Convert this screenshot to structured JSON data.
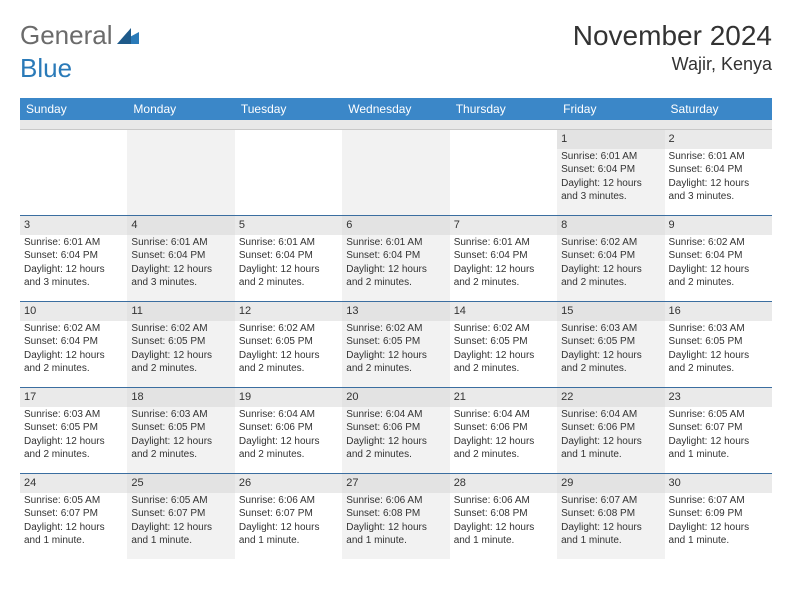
{
  "logo": {
    "text1": "General",
    "text2": "Blue"
  },
  "title": "November 2024",
  "location": "Wajir, Kenya",
  "colors": {
    "header_bg": "#3b87c8",
    "header_text": "#ffffff",
    "row_divider": "#3b6ea0",
    "alt_cell_bg": "#f2f2f2",
    "daynum_bg": "#eaeaea",
    "daynum_alt_bg": "#e3e3e3",
    "logo_gray": "#6b6b6b",
    "logo_blue": "#2a7ab8"
  },
  "day_names": [
    "Sunday",
    "Monday",
    "Tuesday",
    "Wednesday",
    "Thursday",
    "Friday",
    "Saturday"
  ],
  "weeks": [
    [
      {
        "n": "",
        "sr": "",
        "ss": "",
        "dl": ""
      },
      {
        "n": "",
        "sr": "",
        "ss": "",
        "dl": ""
      },
      {
        "n": "",
        "sr": "",
        "ss": "",
        "dl": ""
      },
      {
        "n": "",
        "sr": "",
        "ss": "",
        "dl": ""
      },
      {
        "n": "",
        "sr": "",
        "ss": "",
        "dl": ""
      },
      {
        "n": "1",
        "sr": "Sunrise: 6:01 AM",
        "ss": "Sunset: 6:04 PM",
        "dl": "Daylight: 12 hours and 3 minutes."
      },
      {
        "n": "2",
        "sr": "Sunrise: 6:01 AM",
        "ss": "Sunset: 6:04 PM",
        "dl": "Daylight: 12 hours and 3 minutes."
      }
    ],
    [
      {
        "n": "3",
        "sr": "Sunrise: 6:01 AM",
        "ss": "Sunset: 6:04 PM",
        "dl": "Daylight: 12 hours and 3 minutes."
      },
      {
        "n": "4",
        "sr": "Sunrise: 6:01 AM",
        "ss": "Sunset: 6:04 PM",
        "dl": "Daylight: 12 hours and 3 minutes."
      },
      {
        "n": "5",
        "sr": "Sunrise: 6:01 AM",
        "ss": "Sunset: 6:04 PM",
        "dl": "Daylight: 12 hours and 2 minutes."
      },
      {
        "n": "6",
        "sr": "Sunrise: 6:01 AM",
        "ss": "Sunset: 6:04 PM",
        "dl": "Daylight: 12 hours and 2 minutes."
      },
      {
        "n": "7",
        "sr": "Sunrise: 6:01 AM",
        "ss": "Sunset: 6:04 PM",
        "dl": "Daylight: 12 hours and 2 minutes."
      },
      {
        "n": "8",
        "sr": "Sunrise: 6:02 AM",
        "ss": "Sunset: 6:04 PM",
        "dl": "Daylight: 12 hours and 2 minutes."
      },
      {
        "n": "9",
        "sr": "Sunrise: 6:02 AM",
        "ss": "Sunset: 6:04 PM",
        "dl": "Daylight: 12 hours and 2 minutes."
      }
    ],
    [
      {
        "n": "10",
        "sr": "Sunrise: 6:02 AM",
        "ss": "Sunset: 6:04 PM",
        "dl": "Daylight: 12 hours and 2 minutes."
      },
      {
        "n": "11",
        "sr": "Sunrise: 6:02 AM",
        "ss": "Sunset: 6:05 PM",
        "dl": "Daylight: 12 hours and 2 minutes."
      },
      {
        "n": "12",
        "sr": "Sunrise: 6:02 AM",
        "ss": "Sunset: 6:05 PM",
        "dl": "Daylight: 12 hours and 2 minutes."
      },
      {
        "n": "13",
        "sr": "Sunrise: 6:02 AM",
        "ss": "Sunset: 6:05 PM",
        "dl": "Daylight: 12 hours and 2 minutes."
      },
      {
        "n": "14",
        "sr": "Sunrise: 6:02 AM",
        "ss": "Sunset: 6:05 PM",
        "dl": "Daylight: 12 hours and 2 minutes."
      },
      {
        "n": "15",
        "sr": "Sunrise: 6:03 AM",
        "ss": "Sunset: 6:05 PM",
        "dl": "Daylight: 12 hours and 2 minutes."
      },
      {
        "n": "16",
        "sr": "Sunrise: 6:03 AM",
        "ss": "Sunset: 6:05 PM",
        "dl": "Daylight: 12 hours and 2 minutes."
      }
    ],
    [
      {
        "n": "17",
        "sr": "Sunrise: 6:03 AM",
        "ss": "Sunset: 6:05 PM",
        "dl": "Daylight: 12 hours and 2 minutes."
      },
      {
        "n": "18",
        "sr": "Sunrise: 6:03 AM",
        "ss": "Sunset: 6:05 PM",
        "dl": "Daylight: 12 hours and 2 minutes."
      },
      {
        "n": "19",
        "sr": "Sunrise: 6:04 AM",
        "ss": "Sunset: 6:06 PM",
        "dl": "Daylight: 12 hours and 2 minutes."
      },
      {
        "n": "20",
        "sr": "Sunrise: 6:04 AM",
        "ss": "Sunset: 6:06 PM",
        "dl": "Daylight: 12 hours and 2 minutes."
      },
      {
        "n": "21",
        "sr": "Sunrise: 6:04 AM",
        "ss": "Sunset: 6:06 PM",
        "dl": "Daylight: 12 hours and 2 minutes."
      },
      {
        "n": "22",
        "sr": "Sunrise: 6:04 AM",
        "ss": "Sunset: 6:06 PM",
        "dl": "Daylight: 12 hours and 1 minute."
      },
      {
        "n": "23",
        "sr": "Sunrise: 6:05 AM",
        "ss": "Sunset: 6:07 PM",
        "dl": "Daylight: 12 hours and 1 minute."
      }
    ],
    [
      {
        "n": "24",
        "sr": "Sunrise: 6:05 AM",
        "ss": "Sunset: 6:07 PM",
        "dl": "Daylight: 12 hours and 1 minute."
      },
      {
        "n": "25",
        "sr": "Sunrise: 6:05 AM",
        "ss": "Sunset: 6:07 PM",
        "dl": "Daylight: 12 hours and 1 minute."
      },
      {
        "n": "26",
        "sr": "Sunrise: 6:06 AM",
        "ss": "Sunset: 6:07 PM",
        "dl": "Daylight: 12 hours and 1 minute."
      },
      {
        "n": "27",
        "sr": "Sunrise: 6:06 AM",
        "ss": "Sunset: 6:08 PM",
        "dl": "Daylight: 12 hours and 1 minute."
      },
      {
        "n": "28",
        "sr": "Sunrise: 6:06 AM",
        "ss": "Sunset: 6:08 PM",
        "dl": "Daylight: 12 hours and 1 minute."
      },
      {
        "n": "29",
        "sr": "Sunrise: 6:07 AM",
        "ss": "Sunset: 6:08 PM",
        "dl": "Daylight: 12 hours and 1 minute."
      },
      {
        "n": "30",
        "sr": "Sunrise: 6:07 AM",
        "ss": "Sunset: 6:09 PM",
        "dl": "Daylight: 12 hours and 1 minute."
      }
    ]
  ]
}
